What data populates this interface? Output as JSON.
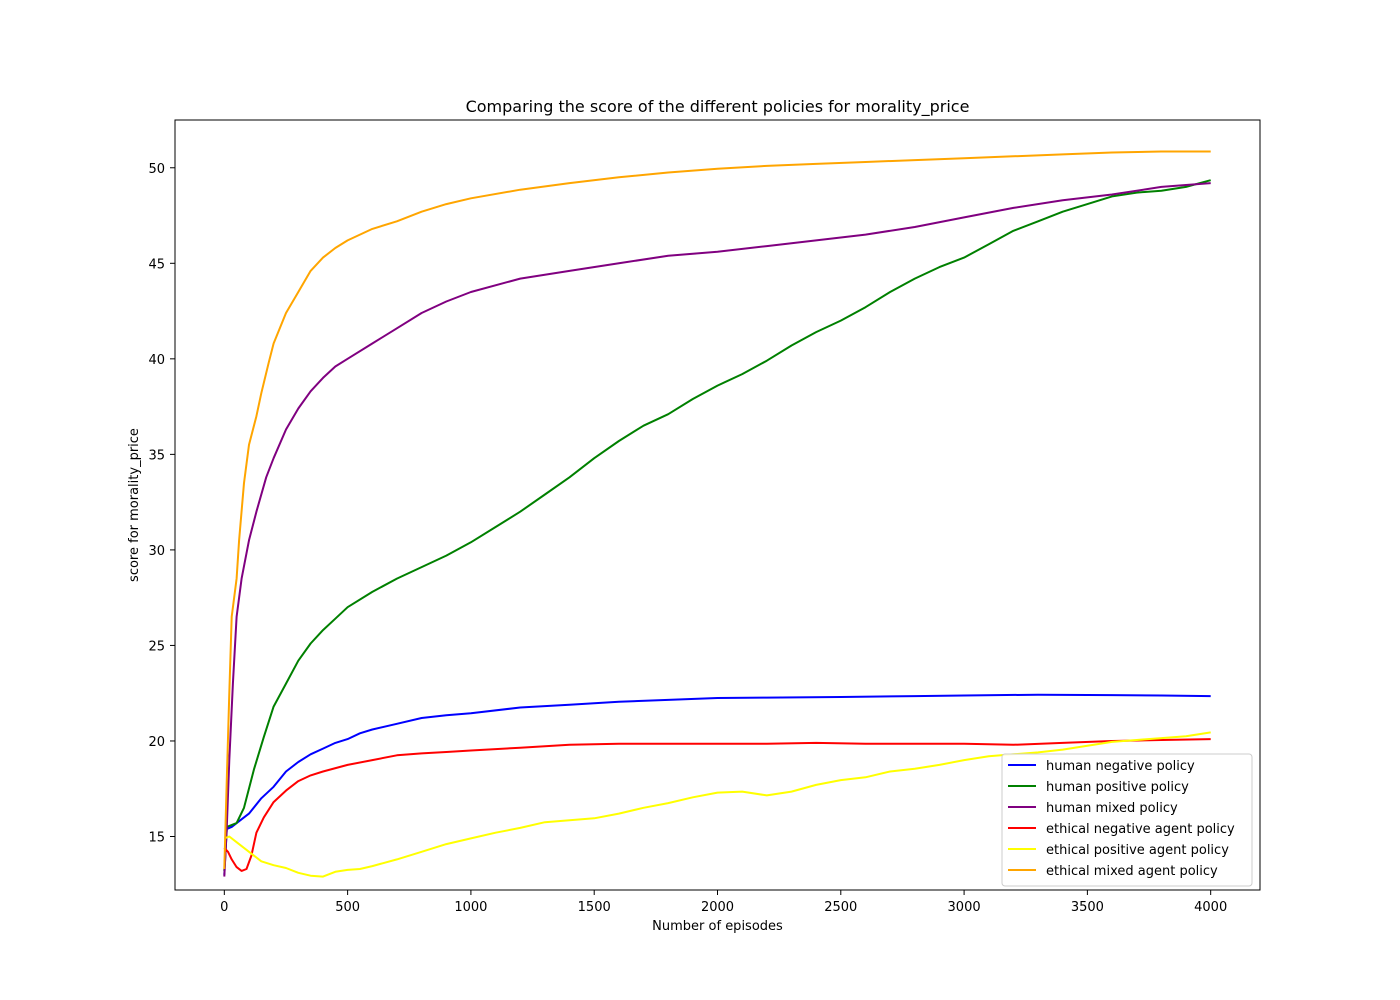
{
  "chart_data": {
    "type": "line",
    "title": "Comparing the score of the different policies for morality_price",
    "xlabel": "Number of episodes",
    "ylabel": "score for morality_price",
    "xlim": [
      -200,
      4200
    ],
    "ylim": [
      12.2,
      52.5
    ],
    "xticks": [
      0,
      500,
      1000,
      1500,
      2000,
      2500,
      3000,
      3500,
      4000
    ],
    "yticks": [
      15,
      20,
      25,
      30,
      35,
      40,
      45,
      50
    ],
    "legend_position": "lower-right",
    "grid": false,
    "series": [
      {
        "name": "human negative policy",
        "color": "#0000ff",
        "points": [
          [
            0,
            13.0
          ],
          [
            10,
            15.4
          ],
          [
            30,
            15.5
          ],
          [
            60,
            15.8
          ],
          [
            100,
            16.2
          ],
          [
            150,
            17.0
          ],
          [
            200,
            17.6
          ],
          [
            250,
            18.4
          ],
          [
            300,
            18.9
          ],
          [
            350,
            19.3
          ],
          [
            400,
            19.6
          ],
          [
            450,
            19.9
          ],
          [
            500,
            20.1
          ],
          [
            550,
            20.4
          ],
          [
            600,
            20.6
          ],
          [
            700,
            20.9
          ],
          [
            800,
            21.2
          ],
          [
            900,
            21.35
          ],
          [
            1000,
            21.45
          ],
          [
            1200,
            21.75
          ],
          [
            1400,
            21.9
          ],
          [
            1600,
            22.05
          ],
          [
            1800,
            22.15
          ],
          [
            2000,
            22.25
          ],
          [
            2200,
            22.27
          ],
          [
            2500,
            22.3
          ],
          [
            2800,
            22.35
          ],
          [
            3000,
            22.38
          ],
          [
            3300,
            22.42
          ],
          [
            3600,
            22.4
          ],
          [
            3800,
            22.38
          ],
          [
            4000,
            22.35
          ]
        ]
      },
      {
        "name": "human positive policy",
        "color": "#008000",
        "points": [
          [
            0,
            13.2
          ],
          [
            10,
            15.5
          ],
          [
            50,
            15.7
          ],
          [
            80,
            16.5
          ],
          [
            120,
            18.5
          ],
          [
            160,
            20.2
          ],
          [
            200,
            21.8
          ],
          [
            250,
            23.0
          ],
          [
            300,
            24.2
          ],
          [
            350,
            25.1
          ],
          [
            400,
            25.8
          ],
          [
            450,
            26.4
          ],
          [
            500,
            27.0
          ],
          [
            600,
            27.8
          ],
          [
            700,
            28.5
          ],
          [
            800,
            29.1
          ],
          [
            900,
            29.7
          ],
          [
            1000,
            30.4
          ],
          [
            1100,
            31.2
          ],
          [
            1200,
            32.0
          ],
          [
            1300,
            32.9
          ],
          [
            1400,
            33.8
          ],
          [
            1500,
            34.8
          ],
          [
            1600,
            35.7
          ],
          [
            1700,
            36.5
          ],
          [
            1800,
            37.1
          ],
          [
            1900,
            37.9
          ],
          [
            2000,
            38.6
          ],
          [
            2100,
            39.2
          ],
          [
            2200,
            39.9
          ],
          [
            2300,
            40.7
          ],
          [
            2400,
            41.4
          ],
          [
            2500,
            42.0
          ],
          [
            2600,
            42.7
          ],
          [
            2700,
            43.5
          ],
          [
            2800,
            44.2
          ],
          [
            2900,
            44.8
          ],
          [
            3000,
            45.3
          ],
          [
            3100,
            46.0
          ],
          [
            3200,
            46.7
          ],
          [
            3300,
            47.2
          ],
          [
            3400,
            47.7
          ],
          [
            3500,
            48.1
          ],
          [
            3600,
            48.5
          ],
          [
            3700,
            48.7
          ],
          [
            3800,
            48.8
          ],
          [
            3900,
            49.0
          ],
          [
            4000,
            49.35
          ]
        ]
      },
      {
        "name": "human mixed policy",
        "color": "#800080",
        "points": [
          [
            0,
            12.9
          ],
          [
            10,
            15.5
          ],
          [
            20,
            19.0
          ],
          [
            35,
            23.0
          ],
          [
            50,
            26.5
          ],
          [
            70,
            28.5
          ],
          [
            100,
            30.5
          ],
          [
            130,
            32.0
          ],
          [
            170,
            33.8
          ],
          [
            200,
            34.8
          ],
          [
            250,
            36.3
          ],
          [
            300,
            37.4
          ],
          [
            350,
            38.3
          ],
          [
            400,
            39.0
          ],
          [
            450,
            39.6
          ],
          [
            500,
            40.0
          ],
          [
            600,
            40.8
          ],
          [
            700,
            41.6
          ],
          [
            800,
            42.4
          ],
          [
            900,
            43.0
          ],
          [
            1000,
            43.5
          ],
          [
            1200,
            44.2
          ],
          [
            1400,
            44.6
          ],
          [
            1600,
            45.0
          ],
          [
            1800,
            45.4
          ],
          [
            2000,
            45.6
          ],
          [
            2200,
            45.9
          ],
          [
            2400,
            46.2
          ],
          [
            2600,
            46.5
          ],
          [
            2800,
            46.9
          ],
          [
            3000,
            47.4
          ],
          [
            3200,
            47.9
          ],
          [
            3400,
            48.3
          ],
          [
            3600,
            48.6
          ],
          [
            3800,
            49.0
          ],
          [
            4000,
            49.2
          ]
        ]
      },
      {
        "name": "ethical negative agent policy",
        "color": "#ff0000",
        "points": [
          [
            0,
            14.4
          ],
          [
            15,
            14.2
          ],
          [
            30,
            13.8
          ],
          [
            50,
            13.4
          ],
          [
            70,
            13.2
          ],
          [
            90,
            13.3
          ],
          [
            110,
            14.0
          ],
          [
            130,
            15.2
          ],
          [
            160,
            16.0
          ],
          [
            200,
            16.8
          ],
          [
            250,
            17.4
          ],
          [
            300,
            17.9
          ],
          [
            350,
            18.2
          ],
          [
            400,
            18.4
          ],
          [
            500,
            18.75
          ],
          [
            600,
            19.0
          ],
          [
            700,
            19.25
          ],
          [
            800,
            19.35
          ],
          [
            900,
            19.42
          ],
          [
            1000,
            19.5
          ],
          [
            1200,
            19.65
          ],
          [
            1400,
            19.8
          ],
          [
            1600,
            19.85
          ],
          [
            1800,
            19.85
          ],
          [
            2000,
            19.85
          ],
          [
            2200,
            19.85
          ],
          [
            2400,
            19.9
          ],
          [
            2600,
            19.85
          ],
          [
            2800,
            19.85
          ],
          [
            3000,
            19.85
          ],
          [
            3200,
            19.8
          ],
          [
            3400,
            19.9
          ],
          [
            3600,
            20.0
          ],
          [
            3800,
            20.05
          ],
          [
            4000,
            20.1
          ]
        ]
      },
      {
        "name": "ethical positive agent policy",
        "color": "#ffff00",
        "points": [
          [
            0,
            14.9
          ],
          [
            20,
            15.0
          ],
          [
            50,
            14.7
          ],
          [
            100,
            14.2
          ],
          [
            150,
            13.7
          ],
          [
            200,
            13.5
          ],
          [
            250,
            13.35
          ],
          [
            300,
            13.1
          ],
          [
            350,
            12.95
          ],
          [
            400,
            12.9
          ],
          [
            450,
            13.15
          ],
          [
            500,
            13.25
          ],
          [
            550,
            13.3
          ],
          [
            600,
            13.45
          ],
          [
            700,
            13.8
          ],
          [
            800,
            14.2
          ],
          [
            900,
            14.6
          ],
          [
            1000,
            14.9
          ],
          [
            1100,
            15.2
          ],
          [
            1200,
            15.45
          ],
          [
            1300,
            15.75
          ],
          [
            1400,
            15.85
          ],
          [
            1500,
            15.95
          ],
          [
            1600,
            16.2
          ],
          [
            1700,
            16.5
          ],
          [
            1800,
            16.75
          ],
          [
            1900,
            17.05
          ],
          [
            2000,
            17.3
          ],
          [
            2100,
            17.35
          ],
          [
            2200,
            17.15
          ],
          [
            2300,
            17.35
          ],
          [
            2400,
            17.7
          ],
          [
            2500,
            17.95
          ],
          [
            2600,
            18.1
          ],
          [
            2700,
            18.4
          ],
          [
            2800,
            18.55
          ],
          [
            2900,
            18.75
          ],
          [
            3000,
            19.0
          ],
          [
            3100,
            19.2
          ],
          [
            3200,
            19.3
          ],
          [
            3300,
            19.4
          ],
          [
            3400,
            19.55
          ],
          [
            3500,
            19.75
          ],
          [
            3600,
            19.95
          ],
          [
            3700,
            20.05
          ],
          [
            3800,
            20.15
          ],
          [
            3900,
            20.25
          ],
          [
            4000,
            20.45
          ]
        ]
      },
      {
        "name": "ethical mixed agent policy",
        "color": "#ffa500",
        "points": [
          [
            0,
            13.3
          ],
          [
            10,
            18.0
          ],
          [
            20,
            22.5
          ],
          [
            30,
            26.5
          ],
          [
            50,
            28.5
          ],
          [
            60,
            30.5
          ],
          [
            80,
            33.5
          ],
          [
            100,
            35.5
          ],
          [
            130,
            37.0
          ],
          [
            150,
            38.2
          ],
          [
            180,
            39.8
          ],
          [
            200,
            40.8
          ],
          [
            250,
            42.4
          ],
          [
            300,
            43.5
          ],
          [
            350,
            44.6
          ],
          [
            400,
            45.3
          ],
          [
            450,
            45.8
          ],
          [
            500,
            46.2
          ],
          [
            600,
            46.8
          ],
          [
            700,
            47.2
          ],
          [
            800,
            47.7
          ],
          [
            900,
            48.1
          ],
          [
            1000,
            48.4
          ],
          [
            1200,
            48.85
          ],
          [
            1400,
            49.2
          ],
          [
            1600,
            49.5
          ],
          [
            1800,
            49.75
          ],
          [
            2000,
            49.95
          ],
          [
            2200,
            50.1
          ],
          [
            2400,
            50.2
          ],
          [
            2600,
            50.3
          ],
          [
            2800,
            50.4
          ],
          [
            3000,
            50.5
          ],
          [
            3200,
            50.6
          ],
          [
            3400,
            50.7
          ],
          [
            3600,
            50.8
          ],
          [
            3800,
            50.85
          ],
          [
            4000,
            50.85
          ]
        ]
      }
    ]
  }
}
